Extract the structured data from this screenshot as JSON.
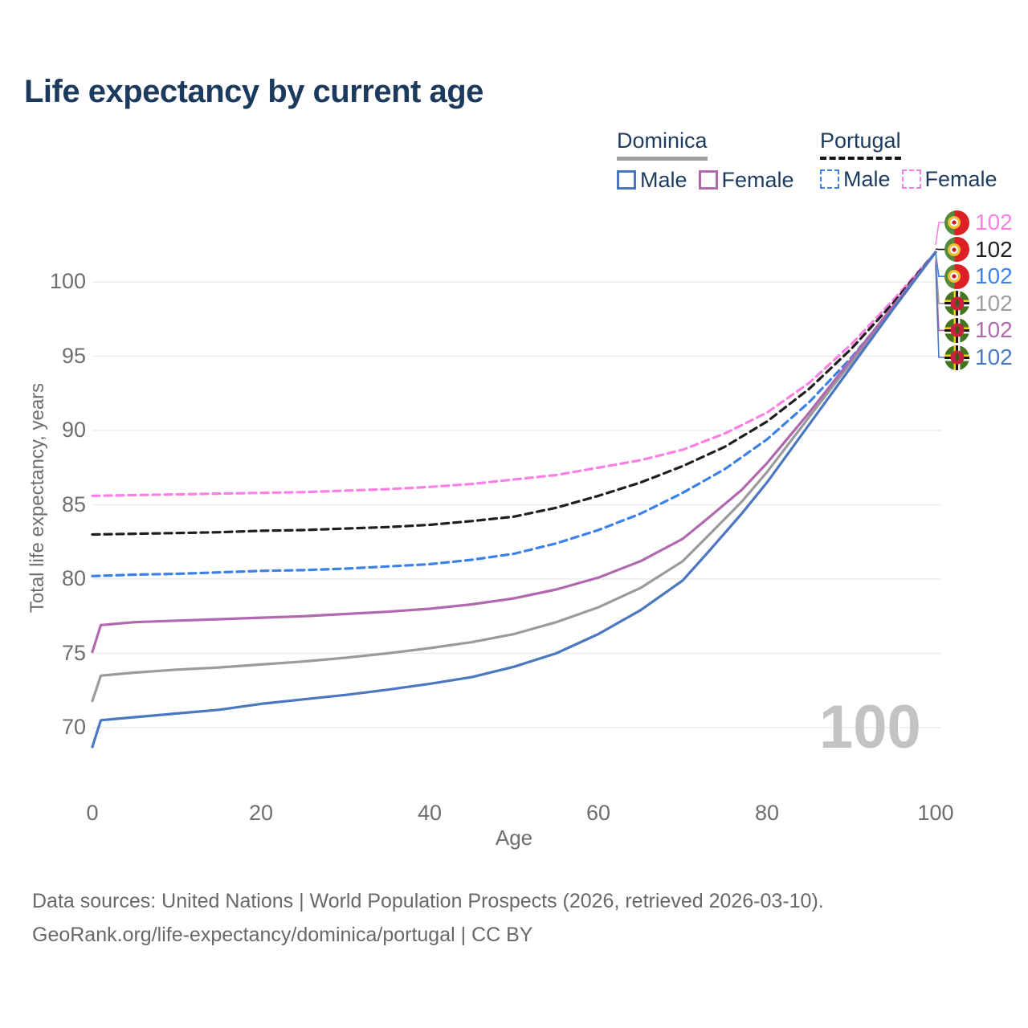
{
  "title": "Life expectancy by current age",
  "legend": {
    "groups": [
      {
        "title": "Dominica",
        "line_style": "solid",
        "underline_color": "#9e9e9e",
        "items": [
          {
            "label": "Male",
            "color": "#4a77c0"
          },
          {
            "label": "Female",
            "color": "#b069ae"
          }
        ]
      },
      {
        "title": "Portugal",
        "line_style": "dashed",
        "underline_color": "#141414",
        "items": [
          {
            "label": "Male",
            "color": "#3c80ea"
          },
          {
            "label": "Female",
            "color": "#fc80e4"
          }
        ]
      }
    ]
  },
  "chart_data": {
    "type": "line",
    "title": "Life expectancy by current age",
    "xlabel": "Age",
    "ylabel": "Total life expectancy, years",
    "xlim": [
      0,
      100
    ],
    "ylim": [
      67,
      103
    ],
    "x_ticks": [
      0,
      20,
      40,
      60,
      80,
      100
    ],
    "y_ticks": [
      70,
      75,
      80,
      85,
      90,
      95,
      100
    ],
    "grid": "horizontal",
    "grid_color": "#ececec",
    "watermark": "100",
    "series": [
      {
        "name": "Portugal Female",
        "country": "Portugal",
        "sex": "Female",
        "color": "#fc80e4",
        "dash": true,
        "points": [
          [
            0,
            85.6
          ],
          [
            5,
            85.65
          ],
          [
            10,
            85.7
          ],
          [
            15,
            85.75
          ],
          [
            20,
            85.8
          ],
          [
            25,
            85.85
          ],
          [
            30,
            85.95
          ],
          [
            35,
            86.05
          ],
          [
            40,
            86.2
          ],
          [
            45,
            86.4
          ],
          [
            50,
            86.7
          ],
          [
            55,
            87.0
          ],
          [
            60,
            87.5
          ],
          [
            65,
            88.0
          ],
          [
            70,
            88.7
          ],
          [
            75,
            89.8
          ],
          [
            80,
            91.2
          ],
          [
            85,
            93.2
          ],
          [
            90,
            95.8
          ],
          [
            95,
            98.8
          ],
          [
            100,
            102
          ]
        ]
      },
      {
        "name": "Portugal Total",
        "country": "Portugal",
        "sex": "Total",
        "color": "#1e1e1e",
        "dash": true,
        "points": [
          [
            0,
            83.0
          ],
          [
            5,
            83.05
          ],
          [
            10,
            83.1
          ],
          [
            15,
            83.15
          ],
          [
            20,
            83.25
          ],
          [
            25,
            83.3
          ],
          [
            30,
            83.4
          ],
          [
            35,
            83.5
          ],
          [
            40,
            83.65
          ],
          [
            45,
            83.9
          ],
          [
            50,
            84.2
          ],
          [
            55,
            84.8
          ],
          [
            60,
            85.6
          ],
          [
            65,
            86.5
          ],
          [
            70,
            87.6
          ],
          [
            75,
            88.9
          ],
          [
            80,
            90.6
          ],
          [
            85,
            92.8
          ],
          [
            90,
            95.5
          ],
          [
            95,
            98.6
          ],
          [
            100,
            102
          ]
        ]
      },
      {
        "name": "Portugal Male",
        "country": "Portugal",
        "sex": "Male",
        "color": "#3c80ea",
        "dash": true,
        "points": [
          [
            0,
            80.2
          ],
          [
            5,
            80.3
          ],
          [
            10,
            80.35
          ],
          [
            15,
            80.45
          ],
          [
            20,
            80.55
          ],
          [
            25,
            80.6
          ],
          [
            30,
            80.7
          ],
          [
            35,
            80.85
          ],
          [
            40,
            81.0
          ],
          [
            45,
            81.3
          ],
          [
            50,
            81.7
          ],
          [
            55,
            82.4
          ],
          [
            60,
            83.3
          ],
          [
            65,
            84.4
          ],
          [
            70,
            85.8
          ],
          [
            75,
            87.4
          ],
          [
            80,
            89.4
          ],
          [
            85,
            91.9
          ],
          [
            90,
            94.9
          ],
          [
            95,
            98.3
          ],
          [
            100,
            102
          ]
        ]
      },
      {
        "name": "Dominica Total",
        "country": "Dominica",
        "sex": "Total",
        "color": "#9b9b9b",
        "dash": false,
        "points": [
          [
            0,
            71.8
          ],
          [
            1,
            73.5
          ],
          [
            3,
            73.6
          ],
          [
            5,
            73.7
          ],
          [
            10,
            73.9
          ],
          [
            15,
            74.05
          ],
          [
            20,
            74.25
          ],
          [
            25,
            74.45
          ],
          [
            30,
            74.7
          ],
          [
            35,
            75.0
          ],
          [
            40,
            75.35
          ],
          [
            45,
            75.75
          ],
          [
            50,
            76.3
          ],
          [
            55,
            77.1
          ],
          [
            60,
            78.1
          ],
          [
            65,
            79.4
          ],
          [
            70,
            81.2
          ],
          [
            73,
            82.9
          ],
          [
            77,
            85.2
          ],
          [
            80,
            87.2
          ],
          [
            85,
            90.9
          ],
          [
            90,
            94.6
          ],
          [
            95,
            98.3
          ],
          [
            100,
            102
          ]
        ]
      },
      {
        "name": "Dominica Female",
        "country": "Dominica",
        "sex": "Female",
        "color": "#b069ae",
        "dash": false,
        "points": [
          [
            0,
            75.1
          ],
          [
            1,
            76.9
          ],
          [
            3,
            77.0
          ],
          [
            5,
            77.1
          ],
          [
            10,
            77.2
          ],
          [
            15,
            77.3
          ],
          [
            20,
            77.4
          ],
          [
            25,
            77.5
          ],
          [
            30,
            77.65
          ],
          [
            35,
            77.8
          ],
          [
            40,
            78.0
          ],
          [
            45,
            78.3
          ],
          [
            50,
            78.7
          ],
          [
            55,
            79.3
          ],
          [
            60,
            80.1
          ],
          [
            65,
            81.2
          ],
          [
            70,
            82.7
          ],
          [
            73,
            84.1
          ],
          [
            77,
            86.0
          ],
          [
            80,
            87.8
          ],
          [
            85,
            91.2
          ],
          [
            90,
            94.8
          ],
          [
            95,
            98.4
          ],
          [
            100,
            102
          ]
        ]
      },
      {
        "name": "Dominica Male",
        "country": "Dominica",
        "sex": "Male",
        "color": "#4a77c0",
        "dash": false,
        "points": [
          [
            0,
            68.7
          ],
          [
            1,
            70.5
          ],
          [
            3,
            70.6
          ],
          [
            5,
            70.7
          ],
          [
            10,
            70.95
          ],
          [
            15,
            71.2
          ],
          [
            20,
            71.6
          ],
          [
            25,
            71.9
          ],
          [
            30,
            72.2
          ],
          [
            35,
            72.55
          ],
          [
            40,
            72.95
          ],
          [
            45,
            73.4
          ],
          [
            50,
            74.1
          ],
          [
            55,
            75.0
          ],
          [
            60,
            76.3
          ],
          [
            65,
            77.9
          ],
          [
            70,
            79.9
          ],
          [
            73,
            81.8
          ],
          [
            77,
            84.4
          ],
          [
            80,
            86.5
          ],
          [
            85,
            90.4
          ],
          [
            90,
            94.3
          ],
          [
            95,
            98.2
          ],
          [
            100,
            102
          ]
        ]
      }
    ],
    "end_labels": [
      {
        "series": "Portugal Female",
        "flag": "portugal",
        "value": "102",
        "color": "#fc80e4"
      },
      {
        "series": "Portugal Total",
        "flag": "portugal",
        "value": "102",
        "color": "#1e1e1e"
      },
      {
        "series": "Portugal Male",
        "flag": "portugal",
        "value": "102",
        "color": "#3c80ea"
      },
      {
        "series": "Dominica Total",
        "flag": "dominica",
        "value": "102",
        "color": "#9e9e9e"
      },
      {
        "series": "Dominica Female",
        "flag": "dominica",
        "value": "102",
        "color": "#b069ae"
      },
      {
        "series": "Dominica Male",
        "flag": "dominica",
        "value": "102",
        "color": "#4a77c0"
      }
    ]
  },
  "footer": {
    "line1": "Data sources: United Nations | World Population Prospects (2026, retrieved 2026-03-10).",
    "line2": "GeoRank.org/life-expectancy/dominica/portugal | CC BY"
  }
}
